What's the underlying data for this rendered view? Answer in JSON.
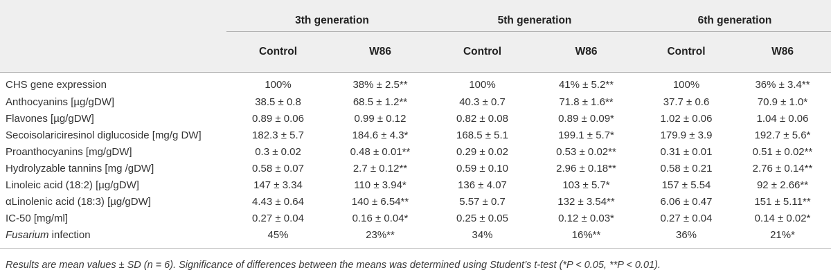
{
  "generations": [
    "3th generation",
    "5th generation",
    "6th generation"
  ],
  "sub_headers": [
    "Control",
    "W86",
    "Control",
    "W86",
    "Control",
    "W86"
  ],
  "rows": [
    {
      "label": "CHS gene expression",
      "label_italic": "",
      "label_rest": "",
      "values": [
        "100%",
        "38% ± 2.5**",
        "100%",
        "41% ± 5.2**",
        "100%",
        "36% ± 3.4**"
      ]
    },
    {
      "label": "Anthocyanins [µg/gDW]",
      "label_italic": "",
      "label_rest": "",
      "values": [
        "38.5 ± 0.8",
        "68.5 ± 1.2**",
        "40.3 ± 0.7",
        "71.8 ± 1.6**",
        "37.7 ± 0.6",
        "70.9 ± 1.0*"
      ]
    },
    {
      "label": "Flavones [µg/gDW]",
      "label_italic": "",
      "label_rest": "",
      "values": [
        "0.89 ± 0.06",
        "0.99 ± 0.12",
        "0.82 ± 0.08",
        "0.89 ± 0.09*",
        "1.02 ± 0.06",
        "1.04 ± 0.06"
      ]
    },
    {
      "label": "Secoisolariciresinol diglucoside [mg/g DW]",
      "label_italic": "",
      "label_rest": "",
      "values": [
        "182.3 ± 5.7",
        "184.6 ± 4.3*",
        "168.5 ± 5.1",
        "199.1 ± 5.7*",
        "179.9 ± 3.9",
        "192.7 ± 5.6*"
      ]
    },
    {
      "label": "Proanthocyanins [mg/gDW]",
      "label_italic": "",
      "label_rest": "",
      "values": [
        "0.3 ± 0.02",
        "0.48 ± 0.01**",
        "0.29 ± 0.02",
        "0.53 ± 0.02**",
        "0.31 ± 0.01",
        "0.51 ± 0.02**"
      ]
    },
    {
      "label": "Hydrolyzable tannins [mg /gDW]",
      "label_italic": "",
      "label_rest": "",
      "values": [
        "0.58 ± 0.07",
        "2.7 ± 0.12**",
        "0.59 ± 0.10",
        "2.96 ± 0.18**",
        "0.58 ± 0.21",
        "2.76 ± 0.14**"
      ]
    },
    {
      "label": "Linoleic acid (18:2) [µg/gDW]",
      "label_italic": "",
      "label_rest": "",
      "values": [
        "147 ± 3.34",
        "110 ± 3.94*",
        "136 ± 4.07",
        "103 ± 5.7*",
        "157 ± 5.54",
        "92 ± 2.66**"
      ]
    },
    {
      "label": "αLinolenic acid (18:3) [µg/gDW]",
      "label_italic": "",
      "label_rest": "",
      "values": [
        "4.43 ± 0.64",
        "140 ± 6.54**",
        "5.57 ± 0.7",
        "132 ± 3.54**",
        "6.06 ± 0.47",
        "151 ± 5.11**"
      ]
    },
    {
      "label": "IC-50 [mg/ml]",
      "label_italic": "",
      "label_rest": "",
      "values": [
        "0.27 ± 0.04",
        "0.16 ± 0.04*",
        "0.25 ± 0.05",
        "0.12 ± 0.03*",
        "0.27 ± 0.04",
        "0.14 ± 0.02*"
      ]
    },
    {
      "label": "",
      "label_italic": "Fusarium",
      "label_rest": " infection",
      "values": [
        "45%",
        "23%**",
        "34%",
        "16%**",
        "36%",
        "21%*"
      ]
    }
  ],
  "footnote": "Results are mean values ± SD (n = 6). Significance of differences between the means was determined using Student’s t-test (*P < 0.05, **P < 0.01)."
}
